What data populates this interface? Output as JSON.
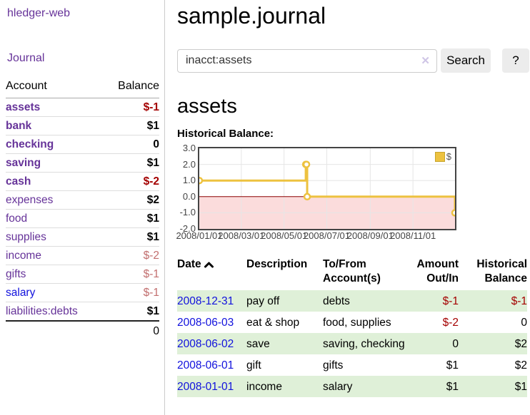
{
  "app": {
    "title": "hledger-web"
  },
  "sidebar": {
    "nav_journal": "Journal",
    "table_headers": {
      "account": "Account",
      "balance": "Balance"
    },
    "accounts": [
      {
        "name": "assets",
        "balance": "$-1"
      },
      {
        "name": "bank",
        "balance": "$1"
      },
      {
        "name": "checking",
        "balance": "0"
      },
      {
        "name": "saving",
        "balance": "$1"
      },
      {
        "name": "cash",
        "balance": "$-2"
      },
      {
        "name": "expenses",
        "balance": "$2"
      },
      {
        "name": "food",
        "balance": "$1"
      },
      {
        "name": "supplies",
        "balance": "$1"
      },
      {
        "name": "income",
        "balance": "$-2"
      },
      {
        "name": "gifts",
        "balance": "$-1"
      },
      {
        "name": "salary",
        "balance": "$-1"
      },
      {
        "name": "liabilities:debts",
        "balance": "$1"
      }
    ],
    "total": "0"
  },
  "header": {
    "title": "sample.journal"
  },
  "search": {
    "value": "inacct:assets",
    "clear_icon": "✕",
    "button_label": "Search",
    "help_label": "?"
  },
  "main": {
    "heading": "assets",
    "chart_label": "Historical Balance:"
  },
  "chart_data": {
    "type": "line",
    "step": true,
    "title": "Historical Balance",
    "series": [
      {
        "name": "$",
        "x": [
          "2008-01-01",
          "2008-06-01",
          "2008-06-02",
          "2008-06-03",
          "2008-12-31"
        ],
        "values": [
          1,
          2,
          2,
          0,
          -1
        ]
      }
    ],
    "xrange": [
      "2008-01-01",
      "2008-12-31"
    ],
    "xticks": [
      {
        "at": "2008-01-01",
        "label": "2008/01/01"
      },
      {
        "at": "2008-03-01",
        "label": "2008/03/01"
      },
      {
        "at": "2008-05-01",
        "label": "2008/05/01"
      },
      {
        "at": "2008-07-01",
        "label": "2008/07/01"
      },
      {
        "at": "2008-09-01",
        "label": "2008/09/01"
      },
      {
        "at": "2008-11-01",
        "label": "2008/11/01"
      }
    ],
    "ylim": [
      -2,
      3
    ],
    "yticks": [
      {
        "at": 3,
        "label": "3.0"
      },
      {
        "at": 2,
        "label": "2.0"
      },
      {
        "at": 1,
        "label": "1.0"
      },
      {
        "at": 0,
        "label": "0.0"
      },
      {
        "at": -1,
        "label": "-1.0"
      },
      {
        "at": -2,
        "label": "-2.0"
      }
    ],
    "legend_position": "top-right",
    "grid": true,
    "negative_region_shaded": true
  },
  "register": {
    "headers": {
      "date": "Date",
      "description": "Description",
      "accounts": "To/From Account(s)",
      "amount": "Amount Out/In",
      "balance": "Historical Balance"
    },
    "rows": [
      {
        "date": "2008-12-31",
        "description": "pay off",
        "accounts": "debts",
        "amount": "$-1",
        "balance": "$-1"
      },
      {
        "date": "2008-06-03",
        "description": "eat & shop",
        "accounts": "food, supplies",
        "amount": "$-2",
        "balance": "0"
      },
      {
        "date": "2008-06-02",
        "description": "save",
        "accounts": "saving, checking",
        "amount": "0",
        "balance": "$2"
      },
      {
        "date": "2008-06-01",
        "description": "gift",
        "accounts": "gifts",
        "amount": "$1",
        "balance": "$2"
      },
      {
        "date": "2008-01-01",
        "description": "income",
        "accounts": "salary",
        "amount": "$1",
        "balance": "$1"
      }
    ]
  },
  "colors": {
    "purple_link": "#663399",
    "blue_link": "#1111dd",
    "negative_strong": "#a40000",
    "negative_muted": "#c26f6f",
    "row_green": "#dff0d8",
    "chart_line": "#edc240",
    "chart_zero_line": "#8b0000",
    "chart_negative_fill": "#fbdcdc",
    "chart_grid": "#e6e6e6",
    "button_bg": "#ececec"
  }
}
